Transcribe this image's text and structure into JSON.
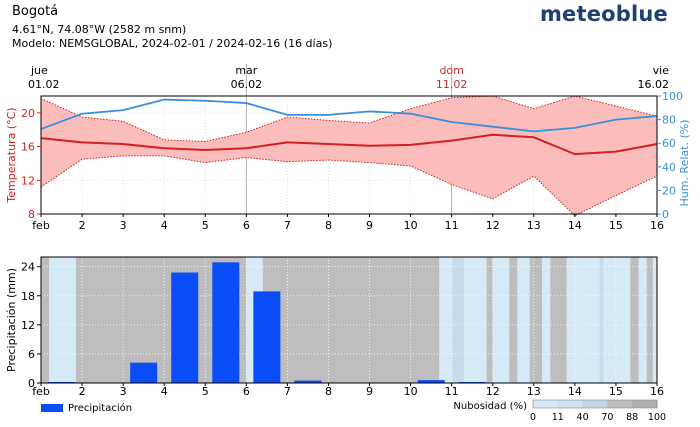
{
  "header": {
    "location": "Bogotá",
    "coordinates": "4.61°N, 74.08°W (2582 m snm)",
    "model_line": "Modelo: NEMSGLOBAL, 2024-02-01 / 2024-02-16 (16 días)",
    "brand": "meteoblue"
  },
  "colors": {
    "temp_line": "#d42020",
    "temp_band": "#fbbcbc",
    "temp_band_edge": "#cc2020",
    "humidity": "#3a8fdb",
    "precip_bar": "#0a4cf5",
    "cloud_gray": "#bdbdbd",
    "cloud_light": "#d6e9f7",
    "cloud_mid": "#c6dcec"
  },
  "chart_data": [
    {
      "type": "line",
      "title": "",
      "x_label": "feb",
      "x_ticks": [
        "feb",
        "2",
        "3",
        "4",
        "5",
        "6",
        "7",
        "8",
        "9",
        "10",
        "11",
        "12",
        "13",
        "14",
        "15",
        "16"
      ],
      "top_dates": [
        {
          "day": 1,
          "weekday": "jue",
          "date": "01.02",
          "highlight": false
        },
        {
          "day": 6,
          "weekday": "mar",
          "date": "06.02",
          "highlight": false
        },
        {
          "day": 11,
          "weekday": "dom",
          "date": "11.02",
          "highlight": true
        },
        {
          "day": 16,
          "weekday": "vie",
          "date": "16.02",
          "highlight": false
        }
      ],
      "y_left": {
        "label": "Temperatura (°C)",
        "range": [
          8,
          22
        ],
        "ticks": [
          8,
          12,
          16,
          20
        ]
      },
      "y_right": {
        "label": "Hum. Relat. (%)",
        "range": [
          0,
          100
        ],
        "ticks": [
          0,
          20,
          40,
          60,
          80,
          100
        ]
      },
      "x": [
        1,
        2,
        3,
        4,
        5,
        6,
        7,
        8,
        9,
        10,
        11,
        12,
        13,
        14,
        15,
        16
      ],
      "series": [
        {
          "name": "Temperatura media",
          "axis": "left",
          "values": [
            17.0,
            16.5,
            16.3,
            15.8,
            15.6,
            15.8,
            16.5,
            16.3,
            16.1,
            16.2,
            16.7,
            17.4,
            17.1,
            15.1,
            15.4,
            16.3
          ]
        },
        {
          "name": "Temperatura máxima",
          "axis": "left",
          "values": [
            21.7,
            19.5,
            19.0,
            16.8,
            16.6,
            17.7,
            19.5,
            19.1,
            18.8,
            20.5,
            21.8,
            22.0,
            20.5,
            22.0,
            20.8,
            19.6
          ]
        },
        {
          "name": "Temperatura mínima",
          "axis": "left",
          "values": [
            11.2,
            14.5,
            14.9,
            14.9,
            14.1,
            14.7,
            14.2,
            14.4,
            14.1,
            13.7,
            11.5,
            9.8,
            12.5,
            7.8,
            10.2,
            12.5
          ]
        },
        {
          "name": "Humedad relativa",
          "axis": "right",
          "values": [
            72,
            85,
            88,
            97,
            96,
            94,
            84,
            84,
            87,
            85,
            78,
            74,
            70,
            73,
            80,
            83
          ]
        }
      ]
    },
    {
      "type": "bar",
      "y_label": "Precipitación (mm)",
      "y_range": [
        0,
        26
      ],
      "y_ticks": [
        0,
        6,
        12,
        18,
        24
      ],
      "x_ticks": [
        "feb",
        "2",
        "3",
        "4",
        "5",
        "6",
        "7",
        "8",
        "9",
        "10",
        "11",
        "12",
        "13",
        "14",
        "15",
        "16"
      ],
      "categories": [
        1,
        2,
        3,
        4,
        5,
        6,
        7,
        8,
        9,
        10,
        11,
        12,
        13,
        14,
        15
      ],
      "values": [
        0.2,
        0,
        4.2,
        22.8,
        24.9,
        18.9,
        0.5,
        0,
        0,
        0.6,
        0.2,
        0,
        0,
        0,
        0
      ],
      "legend": {
        "precip_label": "Precipitación",
        "cloud_label": "Nubosidad (%)",
        "cloud_ticks": [
          "0",
          "11",
          "40",
          "70",
          "88",
          "100"
        ]
      },
      "cloud_cover_bands": [
        {
          "start": 1.0,
          "end": 1.2,
          "level": "gray"
        },
        {
          "start": 1.2,
          "end": 1.85,
          "level": "light"
        },
        {
          "start": 1.85,
          "end": 6.0,
          "level": "gray"
        },
        {
          "start": 6.0,
          "end": 6.4,
          "level": "light"
        },
        {
          "start": 6.4,
          "end": 10.7,
          "level": "gray"
        },
        {
          "start": 10.7,
          "end": 11.0,
          "level": "light"
        },
        {
          "start": 11.0,
          "end": 11.3,
          "level": "mid"
        },
        {
          "start": 11.3,
          "end": 11.85,
          "level": "light"
        },
        {
          "start": 11.85,
          "end": 12.0,
          "level": "gray"
        },
        {
          "start": 12.0,
          "end": 12.4,
          "level": "light"
        },
        {
          "start": 12.4,
          "end": 12.6,
          "level": "gray"
        },
        {
          "start": 12.6,
          "end": 12.9,
          "level": "light"
        },
        {
          "start": 12.9,
          "end": 13.2,
          "level": "gray"
        },
        {
          "start": 13.2,
          "end": 13.4,
          "level": "light"
        },
        {
          "start": 13.4,
          "end": 13.8,
          "level": "gray"
        },
        {
          "start": 13.8,
          "end": 14.6,
          "level": "light"
        },
        {
          "start": 14.6,
          "end": 14.7,
          "level": "mid"
        },
        {
          "start": 14.7,
          "end": 15.35,
          "level": "light"
        },
        {
          "start": 15.35,
          "end": 15.55,
          "level": "gray"
        },
        {
          "start": 15.55,
          "end": 15.75,
          "level": "light"
        },
        {
          "start": 15.75,
          "end": 15.9,
          "level": "gray"
        },
        {
          "start": 15.9,
          "end": 16.0,
          "level": "light"
        }
      ]
    }
  ]
}
